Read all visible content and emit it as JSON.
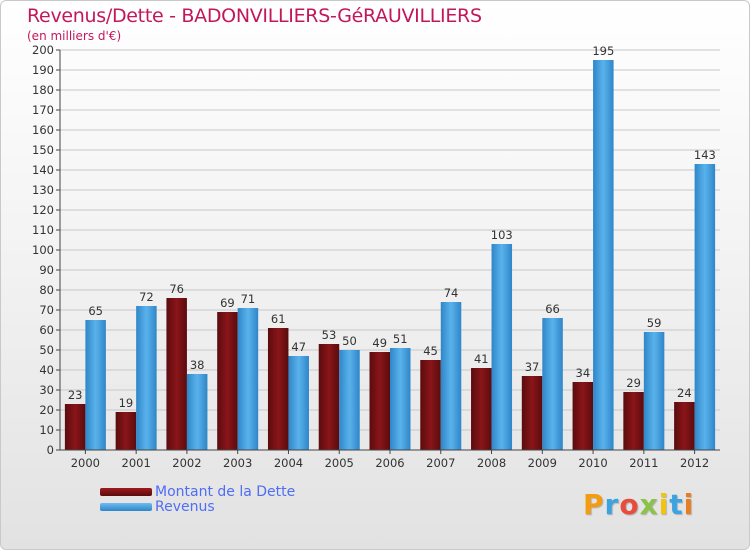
{
  "title": "Revenus/Dette - BADONVILLIERS-GéRAUVILLIERS",
  "subtitle": "(en milliers d'€)",
  "logo": [
    "P",
    "r",
    "o",
    "x",
    "i",
    "t",
    "i"
  ],
  "colors": {
    "dette": "#6e0f12",
    "revenus": "#3f9ad9",
    "axis": "#333333",
    "grid": "#cccccc"
  },
  "chart_data": {
    "type": "bar",
    "categories": [
      "2000",
      "2001",
      "2002",
      "2003",
      "2004",
      "2005",
      "2006",
      "2007",
      "2008",
      "2009",
      "2010",
      "2011",
      "2012"
    ],
    "series": [
      {
        "name": "Montant de la Dette",
        "values": [
          23,
          19,
          76,
          69,
          61,
          53,
          49,
          45,
          41,
          37,
          34,
          29,
          24
        ]
      },
      {
        "name": "Revenus",
        "values": [
          65,
          72,
          38,
          71,
          47,
          50,
          51,
          74,
          103,
          66,
          195,
          59,
          143
        ]
      }
    ],
    "ylim": [
      0,
      200
    ],
    "yticks": [
      0,
      10,
      20,
      30,
      40,
      50,
      60,
      70,
      80,
      90,
      100,
      110,
      120,
      130,
      140,
      150,
      160,
      170,
      180,
      190,
      200
    ],
    "grid": true,
    "legend": "bottom-left"
  }
}
